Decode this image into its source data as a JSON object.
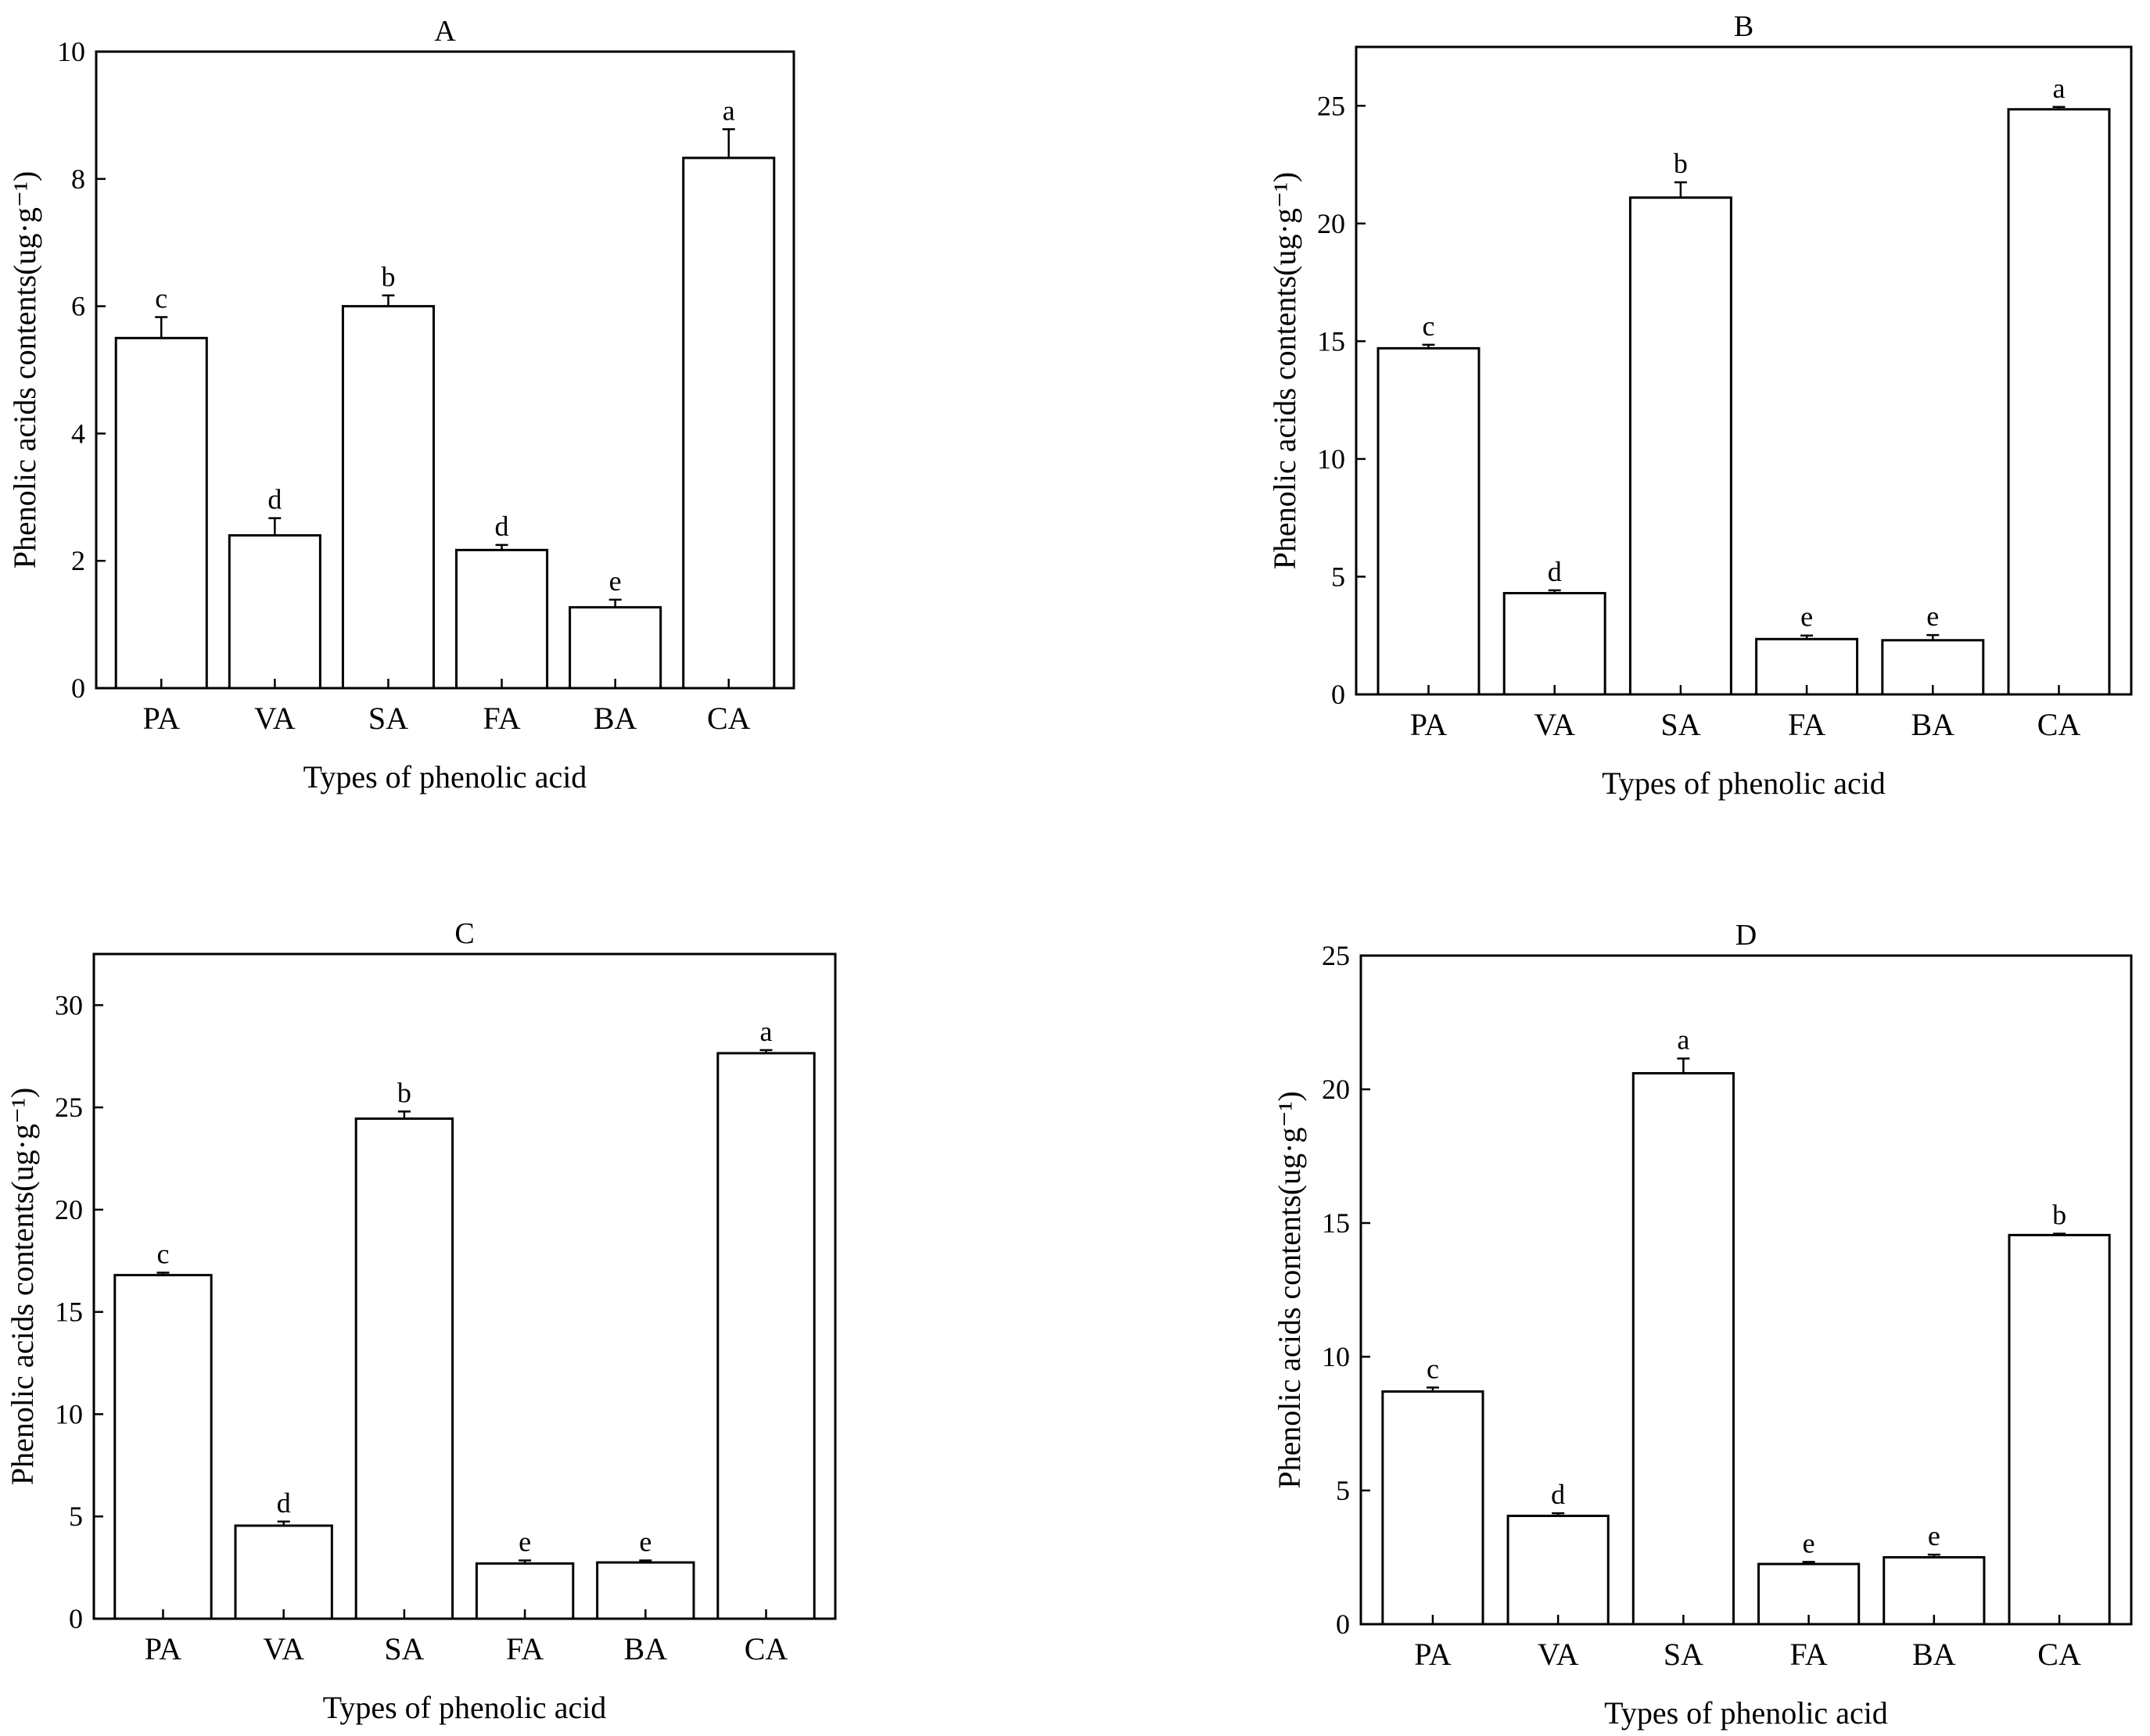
{
  "chart_data": [
    {
      "panel": "A",
      "type": "bar",
      "title": "A",
      "xlabel": "Types of phenolic acid",
      "ylabel": "Phenolic acids contents(ug·g⁻¹)",
      "categories": [
        "PA",
        "VA",
        "SA",
        "FA",
        "BA",
        "CA"
      ],
      "values": [
        5.5,
        2.4,
        6.0,
        2.17,
        1.27,
        8.33
      ],
      "errors": [
        0.33,
        0.27,
        0.17,
        0.08,
        0.12,
        0.45
      ],
      "significance": [
        "c",
        "d",
        "b",
        "d",
        "e",
        "a"
      ],
      "ylim": [
        0,
        10
      ],
      "yticks": [
        0,
        2,
        4,
        6,
        8,
        10
      ]
    },
    {
      "panel": "B",
      "type": "bar",
      "title": "B",
      "xlabel": "Types of phenolic acid",
      "ylabel": "Phenolic acids contents(ug·g⁻¹)",
      "categories": [
        "PA",
        "VA",
        "SA",
        "FA",
        "BA",
        "CA"
      ],
      "values": [
        14.7,
        4.3,
        21.1,
        2.35,
        2.3,
        24.85
      ],
      "errors": [
        0.15,
        0.12,
        0.65,
        0.15,
        0.22,
        0.1
      ],
      "significance": [
        "c",
        "d",
        "b",
        "e",
        "e",
        "a"
      ],
      "ylim": [
        0,
        27.5
      ],
      "yticks": [
        0,
        5,
        10,
        15,
        20,
        25
      ]
    },
    {
      "panel": "C",
      "type": "bar",
      "title": "C",
      "xlabel": "Types of phenolic acid",
      "ylabel": "Phenolic acids contents(ug·g⁻¹)",
      "categories": [
        "PA",
        "VA",
        "SA",
        "FA",
        "BA",
        "CA"
      ],
      "values": [
        16.8,
        4.55,
        24.45,
        2.7,
        2.75,
        27.65
      ],
      "errors": [
        0.12,
        0.2,
        0.35,
        0.15,
        0.1,
        0.15
      ],
      "significance": [
        "c",
        "d",
        "b",
        "e",
        "e",
        "a"
      ],
      "ylim": [
        0,
        32.5
      ],
      "yticks": [
        0,
        5,
        10,
        15,
        20,
        25,
        30
      ]
    },
    {
      "panel": "D",
      "type": "bar",
      "title": "D",
      "xlabel": "Types of phenolic acid",
      "ylabel": "Phenolic acids contents(ug·g⁻¹)",
      "categories": [
        "PA",
        "VA",
        "SA",
        "FA",
        "BA",
        "CA"
      ],
      "values": [
        8.7,
        4.05,
        20.6,
        2.25,
        2.5,
        14.55
      ],
      "errors": [
        0.15,
        0.1,
        0.55,
        0.08,
        0.1,
        0.05
      ],
      "significance": [
        "c",
        "d",
        "a",
        "e",
        "e",
        "b"
      ],
      "ylim": [
        0,
        25
      ],
      "yticks": [
        0,
        5,
        10,
        15,
        20,
        25
      ]
    }
  ]
}
